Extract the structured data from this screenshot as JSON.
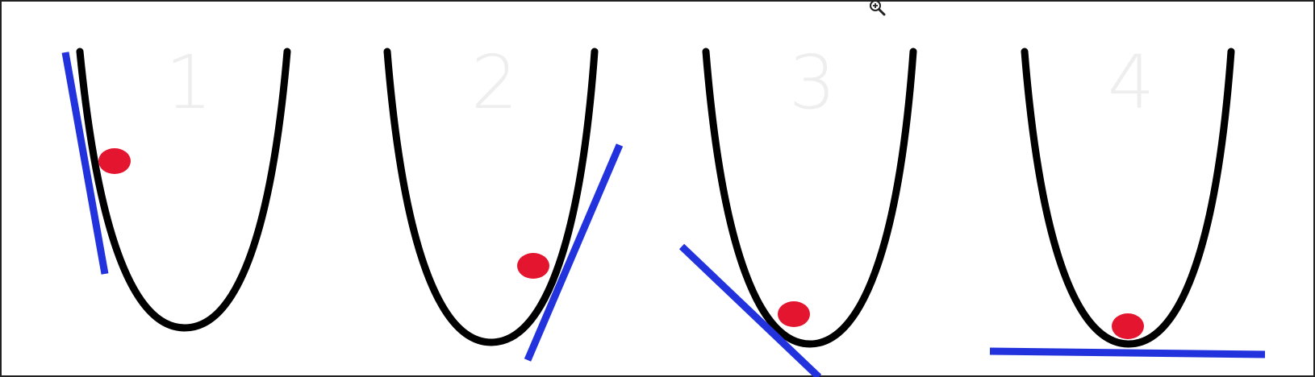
{
  "panels": [
    {
      "number": "1",
      "step": "steep-negative-slope"
    },
    {
      "number": "2",
      "step": "positive-slope"
    },
    {
      "number": "3",
      "step": "negative-slope-near-minimum"
    },
    {
      "number": "4",
      "step": "zero-slope-at-minimum"
    }
  ],
  "colors": {
    "curve": "#000000",
    "tangent": "#2233dd",
    "ball": "#e3152f",
    "number": "#eeeeee"
  },
  "icons": {
    "cursor": "zoom-in-cursor-icon"
  }
}
